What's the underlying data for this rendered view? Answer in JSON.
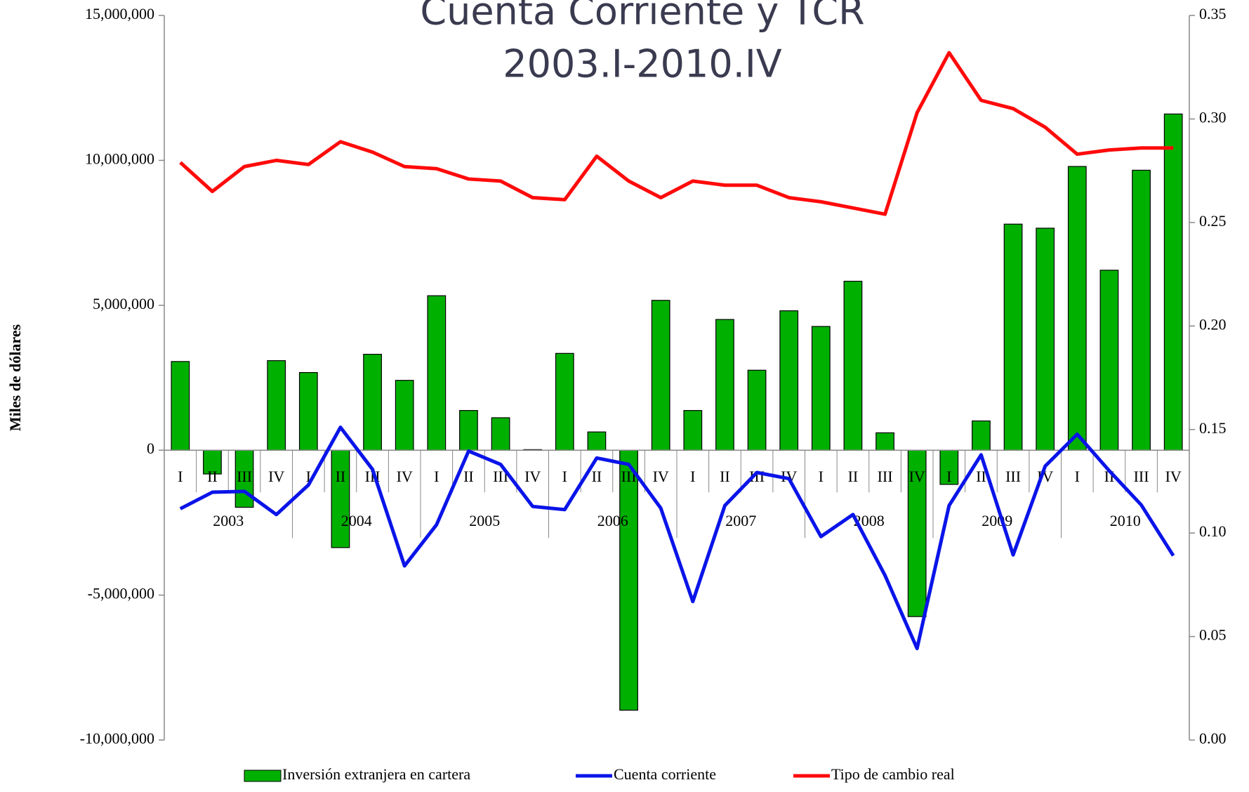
{
  "chart_data": {
    "type": "bar_line",
    "title": "Cuenta Corriente y TCR",
    "subtitle": "2003.I-2010.IV",
    "y_label": "Miles de dólares",
    "categories": [
      "I",
      "II",
      "III",
      "IV",
      "I",
      "II",
      "III",
      "IV",
      "I",
      "II",
      "III",
      "IV",
      "I",
      "II",
      "III",
      "IV",
      "I",
      "II",
      "III",
      "IV",
      "I",
      "II",
      "III",
      "IV",
      "I",
      "II",
      "III",
      "IV",
      "I",
      "II",
      "III",
      "IV"
    ],
    "years": [
      "2003",
      "2004",
      "2005",
      "2006",
      "2007",
      "2008",
      "2009",
      "2010"
    ],
    "series": [
      {
        "name": "Inversión extranjera en cartera",
        "type": "bar",
        "color": "#00b000",
        "values": [
          3060000,
          -820000,
          -1970000,
          3090000,
          2680000,
          -3360000,
          3310000,
          2410000,
          5330000,
          1370000,
          1120000,
          20000,
          3340000,
          630000,
          -8970000,
          5170000,
          1370000,
          4510000,
          2760000,
          4810000,
          4270000,
          5830000,
          600000,
          -5740000,
          -1180000,
          1010000,
          7800000,
          7660000,
          9790000,
          6210000,
          9660000,
          11600000
        ]
      },
      {
        "name": "Cuenta corriente",
        "type": "line",
        "color": "#0a14e8",
        "values": [
          -2020000,
          -1450000,
          -1420000,
          -2220000,
          -1200000,
          790000,
          -660000,
          -3990000,
          -2570000,
          -30000,
          -490000,
          -1940000,
          -2050000,
          -270000,
          -490000,
          -2000000,
          -5220000,
          -1910000,
          -770000,
          -980000,
          -2980000,
          -2220000,
          -4320000,
          -6840000,
          -1910000,
          -160000,
          -3610000,
          -550000,
          550000,
          -710000,
          -1890000,
          -3640000
        ]
      },
      {
        "name": "Tipo de cambio real",
        "type": "line",
        "axis": "y2",
        "color": "#ff0a0a",
        "values": [
          0.279,
          0.265,
          0.277,
          0.28,
          0.278,
          0.289,
          0.284,
          0.277,
          0.276,
          0.271,
          0.27,
          0.262,
          0.261,
          0.282,
          0.27,
          0.262,
          0.27,
          0.268,
          0.268,
          0.262,
          0.26,
          0.257,
          0.254,
          0.303,
          0.332,
          0.309,
          0.305,
          0.296,
          0.283,
          0.285,
          0.286,
          0.286
        ]
      }
    ],
    "ylim": [
      -10000000,
      15000000
    ],
    "yticks": [
      {
        "value": -10000000,
        "label": "-10,000,000"
      },
      {
        "value": -5000000,
        "label": "-5,000,000"
      },
      0,
      {
        "value": 5000000,
        "label": "5,000,000"
      },
      {
        "value": 10000000,
        "label": "10,000,000"
      },
      {
        "value": 15000000,
        "label": "15,000,000"
      }
    ],
    "y2lim": [
      0,
      0.35
    ],
    "y2ticks": [
      {
        "value": 0,
        "label": "0.00"
      },
      0.05,
      {
        "value": 0.1,
        "label": "0.10"
      },
      0.15,
      {
        "value": 0.2,
        "label": "0.20"
      },
      0.25,
      {
        "value": 0.3,
        "label": "0.30"
      },
      0.35
    ],
    "legend": "bottom"
  }
}
